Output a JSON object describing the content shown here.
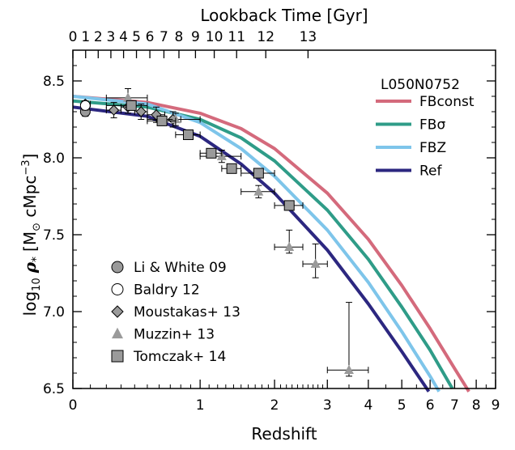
{
  "chart_data": {
    "type": "line",
    "title": "",
    "xlabel": "Redshift",
    "x2label": "Lookback Time [Gyr]",
    "ylabel_prefix": "log",
    "ylabel_sub": "10",
    "ylabel_rho": "ρ",
    "ylabel_star": "*",
    "ylabel_units": "[M",
    "ylabel_sun": "⊙",
    "ylabel_units2": " cMpc",
    "ylabel_exp": "−3",
    "ylabel_close": "]",
    "x_scale": "log(1+z)",
    "xlim": [
      0,
      9
    ],
    "ylim": [
      6.5,
      8.7
    ],
    "x_ticks": [
      0,
      1,
      2,
      3,
      4,
      5,
      6,
      7,
      8,
      9
    ],
    "y_ticks": [
      "6.5",
      "7.0",
      "7.5",
      "8.0",
      "8.5"
    ],
    "top_ticks": [
      0,
      1,
      2,
      3,
      4,
      5,
      6,
      7,
      8,
      9,
      10,
      11,
      12,
      13
    ],
    "top_tick_z": [
      0,
      0.072,
      0.148,
      0.23,
      0.318,
      0.414,
      0.521,
      0.642,
      0.782,
      0.95,
      1.16,
      1.44,
      1.86,
      2.6
    ],
    "legend_title": "L050N0752",
    "legend_loc": "top-right",
    "series": [
      {
        "name": "FBconst",
        "color": "#d46a7c",
        "x": [
          0,
          0.5,
          1,
          1.5,
          2,
          3,
          4,
          5,
          6,
          7,
          7.65
        ],
        "y": [
          8.4,
          8.36,
          8.29,
          8.19,
          8.06,
          7.77,
          7.47,
          7.17,
          6.89,
          6.63,
          6.48
        ]
      },
      {
        "name": "FBσ",
        "color": "#2f9c88",
        "x": [
          0,
          0.5,
          1,
          1.5,
          2,
          3,
          4,
          5,
          6,
          6.9
        ],
        "y": [
          8.37,
          8.33,
          8.25,
          8.13,
          7.98,
          7.66,
          7.34,
          7.03,
          6.75,
          6.5
        ]
      },
      {
        "name": "FBZ",
        "color": "#7ec5ea",
        "x": [
          0,
          0.5,
          1,
          1.5,
          2,
          3,
          4,
          5,
          6,
          6.35
        ],
        "y": [
          8.4,
          8.35,
          8.23,
          8.06,
          7.88,
          7.53,
          7.19,
          6.87,
          6.58,
          6.48
        ]
      },
      {
        "name": "Ref",
        "color": "#2c2780",
        "x": [
          0,
          0.5,
          1,
          1.5,
          2,
          3,
          4,
          5,
          5.95
        ],
        "y": [
          8.33,
          8.27,
          8.14,
          7.96,
          7.77,
          7.4,
          7.05,
          6.74,
          6.48
        ]
      }
    ],
    "observations": [
      {
        "name": "Li & White 09",
        "marker": "circle",
        "fill": "#9a9a9a",
        "points": [
          {
            "x": 0.07,
            "y": 8.3,
            "yerr": 0.03
          }
        ]
      },
      {
        "name": "Baldry 12",
        "marker": "circle",
        "fill": "#ffffff",
        "points": [
          {
            "x": 0.07,
            "y": 8.34,
            "yerr": 0.03
          }
        ]
      },
      {
        "name": "Moustakas+ 13",
        "marker": "diamond",
        "fill": "#9a9a9a",
        "points": [
          {
            "x": 0.07,
            "y": 8.35,
            "yerr": 0.02,
            "xlo": 0.05,
            "xhi": 0.1
          },
          {
            "x": 0.25,
            "y": 8.31,
            "yerr": 0.05,
            "xlo": 0.2,
            "xhi": 0.3
          },
          {
            "x": 0.35,
            "y": 8.33,
            "yerr": 0.04,
            "xlo": 0.3,
            "xhi": 0.4
          },
          {
            "x": 0.45,
            "y": 8.3,
            "yerr": 0.05,
            "xlo": 0.4,
            "xhi": 0.5
          },
          {
            "x": 0.575,
            "y": 8.28,
            "yerr": 0.05,
            "xlo": 0.5,
            "xhi": 0.65
          },
          {
            "x": 0.725,
            "y": 8.25,
            "yerr": 0.05,
            "xlo": 0.65,
            "xhi": 0.8
          }
        ]
      },
      {
        "name": "Muzzin+ 13",
        "marker": "triangle",
        "fill": "#9a9a9a",
        "points": [
          {
            "x": 0.35,
            "y": 8.39,
            "ylo": 8.33,
            "yhi": 8.45,
            "xlo": 0.2,
            "xhi": 0.5
          },
          {
            "x": 0.75,
            "y": 8.25,
            "ylo": 8.21,
            "yhi": 8.29,
            "xlo": 0.5,
            "xhi": 1.0
          },
          {
            "x": 1.25,
            "y": 8.01,
            "ylo": 7.97,
            "yhi": 8.05,
            "xlo": 1.0,
            "xhi": 1.5
          },
          {
            "x": 1.75,
            "y": 7.78,
            "ylo": 7.74,
            "yhi": 7.82,
            "xlo": 1.5,
            "xhi": 2.0
          },
          {
            "x": 2.25,
            "y": 7.42,
            "ylo": 7.38,
            "yhi": 7.53,
            "xlo": 2.0,
            "xhi": 2.5
          },
          {
            "x": 2.75,
            "y": 7.31,
            "ylo": 7.22,
            "yhi": 7.44,
            "xlo": 2.5,
            "xhi": 3.0
          },
          {
            "x": 3.5,
            "y": 6.62,
            "ylo": 6.58,
            "yhi": 7.06,
            "xlo": 3.0,
            "xhi": 4.0
          }
        ]
      },
      {
        "name": "Tomczak+ 14",
        "marker": "square",
        "fill": "#9a9a9a",
        "points": [
          {
            "x": 0.375,
            "y": 8.34,
            "yerr": 0.03,
            "xlo": 0.2,
            "xhi": 0.5
          },
          {
            "x": 0.625,
            "y": 8.24,
            "yerr": 0.03,
            "xlo": 0.5,
            "xhi": 0.75
          },
          {
            "x": 0.875,
            "y": 8.15,
            "yerr": 0.03,
            "xlo": 0.75,
            "xhi": 1.0
          },
          {
            "x": 1.125,
            "y": 8.03,
            "yerr": 0.02,
            "xlo": 1.0,
            "xhi": 1.25
          },
          {
            "x": 1.375,
            "y": 7.93,
            "yerr": 0.03,
            "xlo": 1.25,
            "xhi": 1.5
          },
          {
            "x": 1.75,
            "y": 7.9,
            "yerr": 0.03,
            "xlo": 1.5,
            "xhi": 2.0
          },
          {
            "x": 2.25,
            "y": 7.69,
            "yerr": 0.03,
            "xlo": 2.0,
            "xhi": 2.5
          }
        ]
      }
    ],
    "obs_legend": [
      "Li & White 09",
      "Baldry 12",
      "Moustakas+ 13",
      "Muzzin+ 13",
      "Tomczak+ 14"
    ],
    "obs_legend_loc": "lower-left"
  }
}
